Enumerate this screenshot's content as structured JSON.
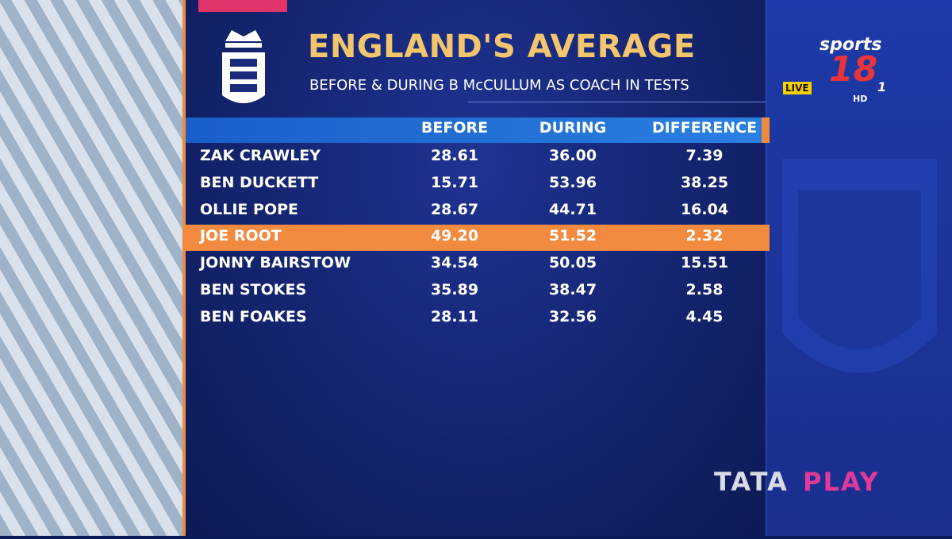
{
  "header": {
    "title": "ENGLAND'S AVERAGE",
    "subtitle": "BEFORE & DURING B McCULLUM AS COACH IN TESTS"
  },
  "table": {
    "columns": [
      "BEFORE",
      "DURING",
      "DIFFERENCE"
    ],
    "rows": [
      {
        "player": "ZAK CRAWLEY",
        "before": "28.61",
        "during": "36.00",
        "difference": "7.39",
        "highlighted": false
      },
      {
        "player": "BEN DUCKETT",
        "before": "15.71",
        "during": "53.96",
        "difference": "38.25",
        "highlighted": false
      },
      {
        "player": "OLLIE POPE",
        "before": "28.67",
        "during": "44.71",
        "difference": "16.04",
        "highlighted": false
      },
      {
        "player": "JOE ROOT",
        "before": "49.20",
        "during": "51.52",
        "difference": "2.32",
        "highlighted": true
      },
      {
        "player": "JONNY BAIRSTOW",
        "before": "34.54",
        "during": "50.05",
        "difference": "15.51",
        "highlighted": false
      },
      {
        "player": "BEN STOKES",
        "before": "35.89",
        "during": "38.47",
        "difference": "2.58",
        "highlighted": false
      },
      {
        "player": "BEN FOAKES",
        "before": "28.11",
        "during": "32.56",
        "difference": "4.45",
        "highlighted": false
      }
    ]
  },
  "channel": {
    "brand": "sports",
    "number": "18",
    "sub": "1",
    "live": "LIVE",
    "hd": "HD"
  },
  "sponsor": {
    "word1": "TATA",
    "word2": "PLAY"
  }
}
